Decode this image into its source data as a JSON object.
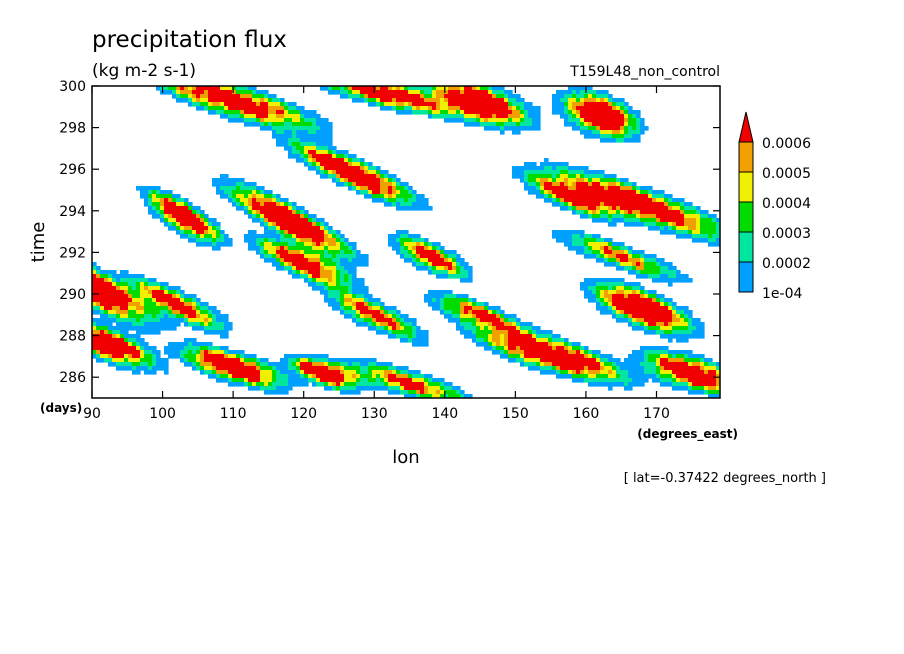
{
  "chart_data": {
    "type": "heatmap",
    "title": "precipitation flux",
    "units": "(kg m-2 s-1)",
    "subtitle_right": "T159L48_non_control",
    "xlabel": "lon",
    "ylabel": "time",
    "x_unit": "(degrees_east)",
    "y_unit": "(days)",
    "footnote": "[ lat=-0.37422 degrees_north ]",
    "xlim": [
      90,
      179
    ],
    "ylim": [
      285,
      300
    ],
    "x_ticks": [
      90,
      100,
      110,
      120,
      130,
      140,
      150,
      160,
      170
    ],
    "x_tick_labels": [
      "90",
      "100",
      "110",
      "120",
      "130",
      "140",
      "150",
      "160",
      "170"
    ],
    "y_ticks": [
      286,
      288,
      290,
      292,
      294,
      296,
      298,
      300
    ],
    "y_tick_labels": [
      "286",
      "288",
      "290",
      "292",
      "294",
      "296",
      "298",
      "300"
    ],
    "color_levels": [
      0.0001,
      0.0002,
      0.0003,
      0.0004,
      0.0005,
      0.0006
    ],
    "colorbar_labels": [
      "1e-04",
      "0.0002",
      "0.0003",
      "0.0004",
      "0.0005",
      "0.0006"
    ],
    "colors": [
      "#ffffff",
      "#00a0ff",
      "#00e6a0",
      "#00dc00",
      "#f0f000",
      "#f0a000",
      "#f00000"
    ],
    "colorbar_extend": "max",
    "grid": false,
    "systems": [
      {
        "lon0": 90,
        "t0": 290.3,
        "slope": -0.16,
        "amp": 0.0011,
        "sx": 5,
        "st": 0.55
      },
      {
        "lon0": 103,
        "t0": 293.7,
        "slope": -0.19,
        "amp": 0.001,
        "sx": 3,
        "st": 0.45
      },
      {
        "lon0": 118,
        "t0": 293.5,
        "slope": -0.18,
        "amp": 0.0011,
        "sx": 5,
        "st": 0.45
      },
      {
        "lon0": 127,
        "t0": 295.8,
        "slope": -0.15,
        "amp": 0.0011,
        "sx": 5,
        "st": 0.4
      },
      {
        "lon0": 120,
        "t0": 291.5,
        "slope": -0.14,
        "amp": 0.0009,
        "sx": 4,
        "st": 0.4
      },
      {
        "lon0": 110,
        "t0": 299.3,
        "slope": -0.1,
        "amp": 0.0009,
        "sx": 7,
        "st": 0.45
      },
      {
        "lon0": 132,
        "t0": 299.6,
        "slope": -0.08,
        "amp": 0.0009,
        "sx": 6,
        "st": 0.35
      },
      {
        "lon0": 145,
        "t0": 299.2,
        "slope": -0.1,
        "amp": 0.0011,
        "sx": 4,
        "st": 0.5
      },
      {
        "lon0": 162,
        "t0": 298.6,
        "slope": -0.1,
        "amp": 0.0011,
        "sx": 3,
        "st": 0.55
      },
      {
        "lon0": 168,
        "t0": 294.3,
        "slope": -0.12,
        "amp": 0.001,
        "sx": 7,
        "st": 0.45
      },
      {
        "lon0": 158,
        "t0": 294.7,
        "slope": -0.13,
        "amp": 0.0008,
        "sx": 4,
        "st": 0.4
      },
      {
        "lon0": 155,
        "t0": 287.1,
        "slope": -0.1,
        "amp": 0.0011,
        "sx": 6,
        "st": 0.45
      },
      {
        "lon0": 168,
        "t0": 289.3,
        "slope": -0.12,
        "amp": 0.0011,
        "sx": 4,
        "st": 0.5
      },
      {
        "lon0": 175,
        "t0": 286.2,
        "slope": -0.1,
        "amp": 0.001,
        "sx": 4,
        "st": 0.45
      },
      {
        "lon0": 110,
        "t0": 286.5,
        "slope": -0.1,
        "amp": 0.0011,
        "sx": 4,
        "st": 0.4
      },
      {
        "lon0": 123,
        "t0": 286.2,
        "slope": -0.09,
        "amp": 0.001,
        "sx": 3,
        "st": 0.35
      },
      {
        "lon0": 92,
        "t0": 287.6,
        "slope": -0.12,
        "amp": 0.001,
        "sx": 4,
        "st": 0.45
      },
      {
        "lon0": 102,
        "t0": 289.5,
        "slope": -0.15,
        "amp": 0.0008,
        "sx": 4,
        "st": 0.4
      },
      {
        "lon0": 138,
        "t0": 291.8,
        "slope": -0.14,
        "amp": 0.0008,
        "sx": 3,
        "st": 0.4
      },
      {
        "lon0": 145,
        "t0": 289.0,
        "slope": -0.12,
        "amp": 0.0007,
        "sx": 4,
        "st": 0.35
      },
      {
        "lon0": 130,
        "t0": 289.0,
        "slope": -0.15,
        "amp": 0.0007,
        "sx": 4,
        "st": 0.4
      },
      {
        "lon0": 165,
        "t0": 291.8,
        "slope": -0.12,
        "amp": 0.0006,
        "sx": 5,
        "st": 0.35
      },
      {
        "lon0": 135,
        "t0": 285.7,
        "slope": -0.1,
        "amp": 0.0007,
        "sx": 5,
        "st": 0.35
      }
    ]
  }
}
